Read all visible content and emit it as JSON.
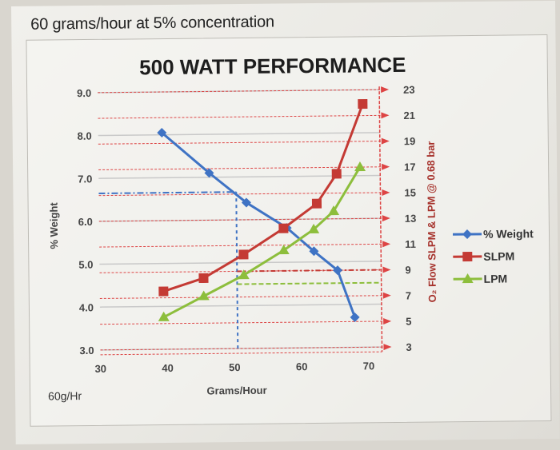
{
  "page": {
    "header_text": "60 grams/hour at 5% concentration",
    "corner_note": "60g/Hr"
  },
  "colors": {
    "weight": "#3f73c4",
    "slpm": "#c43a34",
    "lpm": "#8dbe3c",
    "grid": "#c9c9c9",
    "red_grid": "#d44",
    "guide": "#3f73c4"
  },
  "chart_data": {
    "type": "line",
    "title": "500 WATT PERFORMANCE",
    "xlabel": "Grams/Hour",
    "ylabel_left": "% Weight",
    "ylabel_right": "O₂ Flow SLPM & LPM @ 0.68 bar",
    "xlim": [
      30,
      72
    ],
    "ylim_left": [
      3.0,
      9.0
    ],
    "ylim_right": [
      3,
      23
    ],
    "x_ticks": [
      "30",
      "40",
      "50",
      "60",
      "70"
    ],
    "y_left_ticks": [
      "3.0",
      "4.0",
      "5.0",
      "6.0",
      "7.0",
      "8.0",
      "9.0"
    ],
    "y_right_ticks": [
      "3",
      "5",
      "7",
      "9",
      "11",
      "13",
      "15",
      "17",
      "19",
      "21",
      "23"
    ],
    "grid": true,
    "legend_position": "right",
    "series": [
      {
        "name": "% Weight",
        "axis": "left",
        "marker": "diamond",
        "x": [
          39.5,
          46.5,
          52,
          58,
          62,
          65.5,
          68
        ],
        "y": [
          8.05,
          7.1,
          6.4,
          5.8,
          5.25,
          4.8,
          3.7
        ]
      },
      {
        "name": "SLPM",
        "axis": "right",
        "marker": "square",
        "x": [
          39.5,
          45.5,
          51.5,
          57.5,
          62.5,
          65.5,
          69.5
        ],
        "y": [
          7.5,
          8.5,
          10.3,
          12.3,
          14.2,
          16.5,
          21.9
        ]
      },
      {
        "name": "LPM",
        "axis": "right",
        "marker": "triangle",
        "x": [
          39.5,
          45.5,
          51.5,
          57.5,
          62,
          65,
          69
        ],
        "y": [
          5.5,
          7.1,
          8.7,
          10.6,
          12.2,
          13.6,
          17.0
        ]
      }
    ],
    "annotations": {
      "reference_x": 50.5,
      "reference_weight": 6.65,
      "reference_flow_slpm": 9.0,
      "reference_flow_lpm": 8.0
    }
  }
}
